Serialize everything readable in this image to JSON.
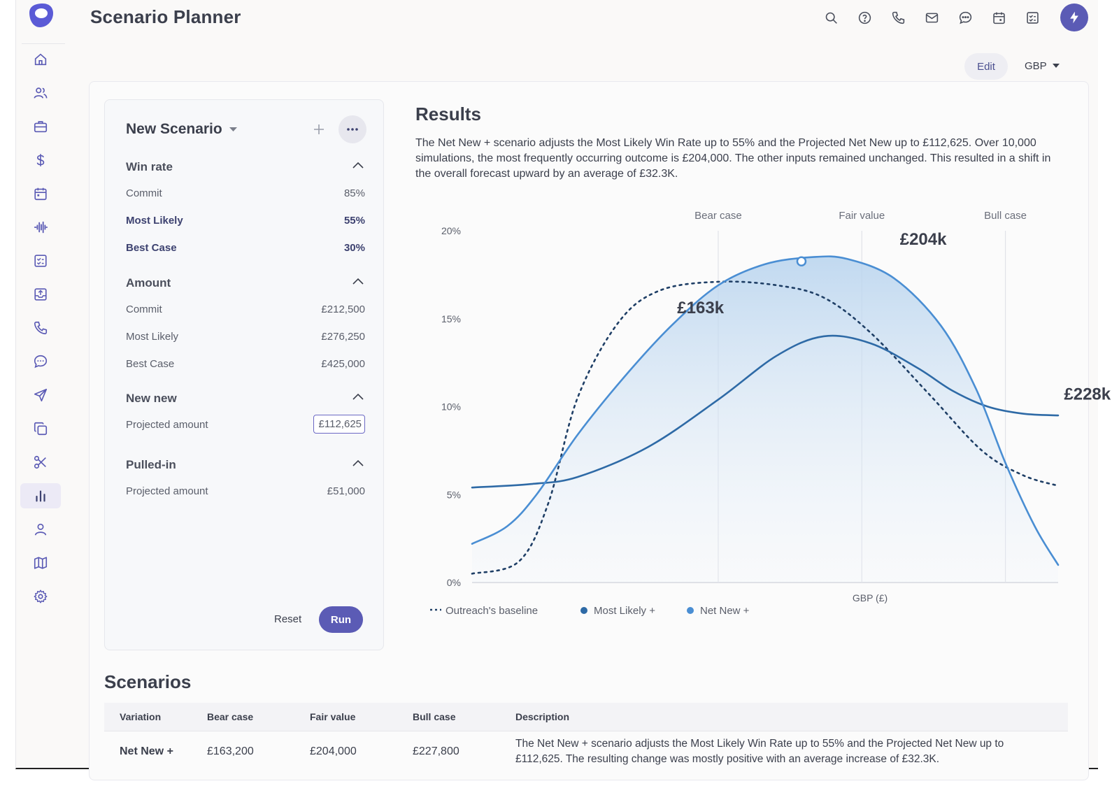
{
  "header": {
    "title": "Scenario Planner"
  },
  "top_icons": [
    "search-icon",
    "help-icon",
    "phone-icon",
    "mail-icon",
    "chat-icon",
    "calendar-icon",
    "tasks-icon"
  ],
  "controls": {
    "edit_label": "Edit",
    "currency": "GBP"
  },
  "scenario": {
    "name": "New Scenario",
    "sections": {
      "win_rate": {
        "title": "Win rate",
        "rows": [
          {
            "label": "Commit",
            "value": "85%"
          },
          {
            "label": "Most Likely",
            "value": "55%"
          },
          {
            "label": "Best Case",
            "value": "30%"
          }
        ]
      },
      "amount": {
        "title": "Amount",
        "rows": [
          {
            "label": "Commit",
            "value": "£212,500"
          },
          {
            "label": "Most Likely",
            "value": "£276,250"
          },
          {
            "label": "Best Case",
            "value": "£425,000"
          }
        ]
      },
      "new_new": {
        "title": "New new",
        "rows": [
          {
            "label": "Projected amount",
            "value": "£112,625"
          }
        ]
      },
      "pulled_in": {
        "title": "Pulled-in",
        "rows": [
          {
            "label": "Projected amount",
            "value": "£51,000"
          }
        ]
      }
    },
    "reset_label": "Reset",
    "run_label": "Run"
  },
  "results": {
    "title": "Results",
    "description": "The Net New + scenario adjusts the Most Likely Win Rate up to 55% and the Projected Net New up to £112,625. Over 10,000 simulations, the most frequently occurring outcome is £204,000. The other inputs remained unchanged. This resulted in a shift in the overall forecast upward by an average of £32.3K."
  },
  "chart_data": {
    "type": "line",
    "xlabel": "GBP (£)",
    "ylabel": "",
    "ylim": [
      0,
      20
    ],
    "y_ticks": [
      "0%",
      "5%",
      "10%",
      "15%",
      "20%"
    ],
    "x_range": [
      0,
      100
    ],
    "reference_lines": [
      {
        "label": "Bear case",
        "x": 42
      },
      {
        "label": "Fair value",
        "x": 66.5
      },
      {
        "label": "Bull case",
        "x": 91
      }
    ],
    "annotations": [
      {
        "text": "£163k",
        "x": 35,
        "y": 15.3
      },
      {
        "text": "£204k",
        "x": 73,
        "y": 19.2
      },
      {
        "text": "£228k",
        "x": 101,
        "y": 10.4
      }
    ],
    "series": [
      {
        "name": "Outreach's baseline",
        "style": "dotted",
        "color": "#1f3f66",
        "points": [
          [
            0,
            0.5
          ],
          [
            8,
            1.2
          ],
          [
            13,
            4.5
          ],
          [
            18,
            10.5
          ],
          [
            25,
            14.8
          ],
          [
            32,
            16.6
          ],
          [
            42,
            17.1
          ],
          [
            52,
            16.9
          ],
          [
            60,
            16.2
          ],
          [
            68,
            14.2
          ],
          [
            78,
            10.7
          ],
          [
            87,
            7.5
          ],
          [
            94,
            6.1
          ],
          [
            100,
            5.5
          ]
        ]
      },
      {
        "name": "Most Likely +",
        "style": "solid",
        "color": "#2e6aa6",
        "points": [
          [
            0,
            5.4
          ],
          [
            10,
            5.6
          ],
          [
            18,
            6.0
          ],
          [
            30,
            7.7
          ],
          [
            42,
            10.4
          ],
          [
            52,
            12.9
          ],
          [
            60,
            14.0
          ],
          [
            68,
            13.6
          ],
          [
            76,
            12.2
          ],
          [
            82,
            10.9
          ],
          [
            88,
            10.0
          ],
          [
            94,
            9.6
          ],
          [
            100,
            9.5
          ]
        ]
      },
      {
        "name": "Net New +",
        "style": "solid",
        "color": "#4a8ed3",
        "filled": true,
        "points": [
          [
            0,
            2.2
          ],
          [
            6,
            3.2
          ],
          [
            11,
            5.0
          ],
          [
            18,
            8.4
          ],
          [
            26,
            11.7
          ],
          [
            34,
            14.6
          ],
          [
            42,
            16.9
          ],
          [
            50,
            18.1
          ],
          [
            58,
            18.5
          ],
          [
            64,
            18.4
          ],
          [
            72,
            17.3
          ],
          [
            80,
            14.6
          ],
          [
            86,
            11.0
          ],
          [
            91,
            6.8
          ],
          [
            96,
            3.2
          ],
          [
            100,
            1.0
          ]
        ]
      }
    ],
    "legend": [
      "Outreach's baseline",
      "Most Likely +",
      "Net New +"
    ]
  },
  "scenarios_table": {
    "title": "Scenarios",
    "columns": [
      "Variation",
      "Bear case",
      "Fair value",
      "Bull case",
      "Description"
    ],
    "rows": [
      {
        "variation": "Net New +",
        "bear": "£163,200",
        "fair": "£204,000",
        "bull": "£227,800",
        "description": "The Net New + scenario adjusts the Most Likely Win Rate up to 55% and the Projected Net New up to £112,625. The resulting change was mostly positive with an average increase of £32.3K."
      }
    ]
  }
}
